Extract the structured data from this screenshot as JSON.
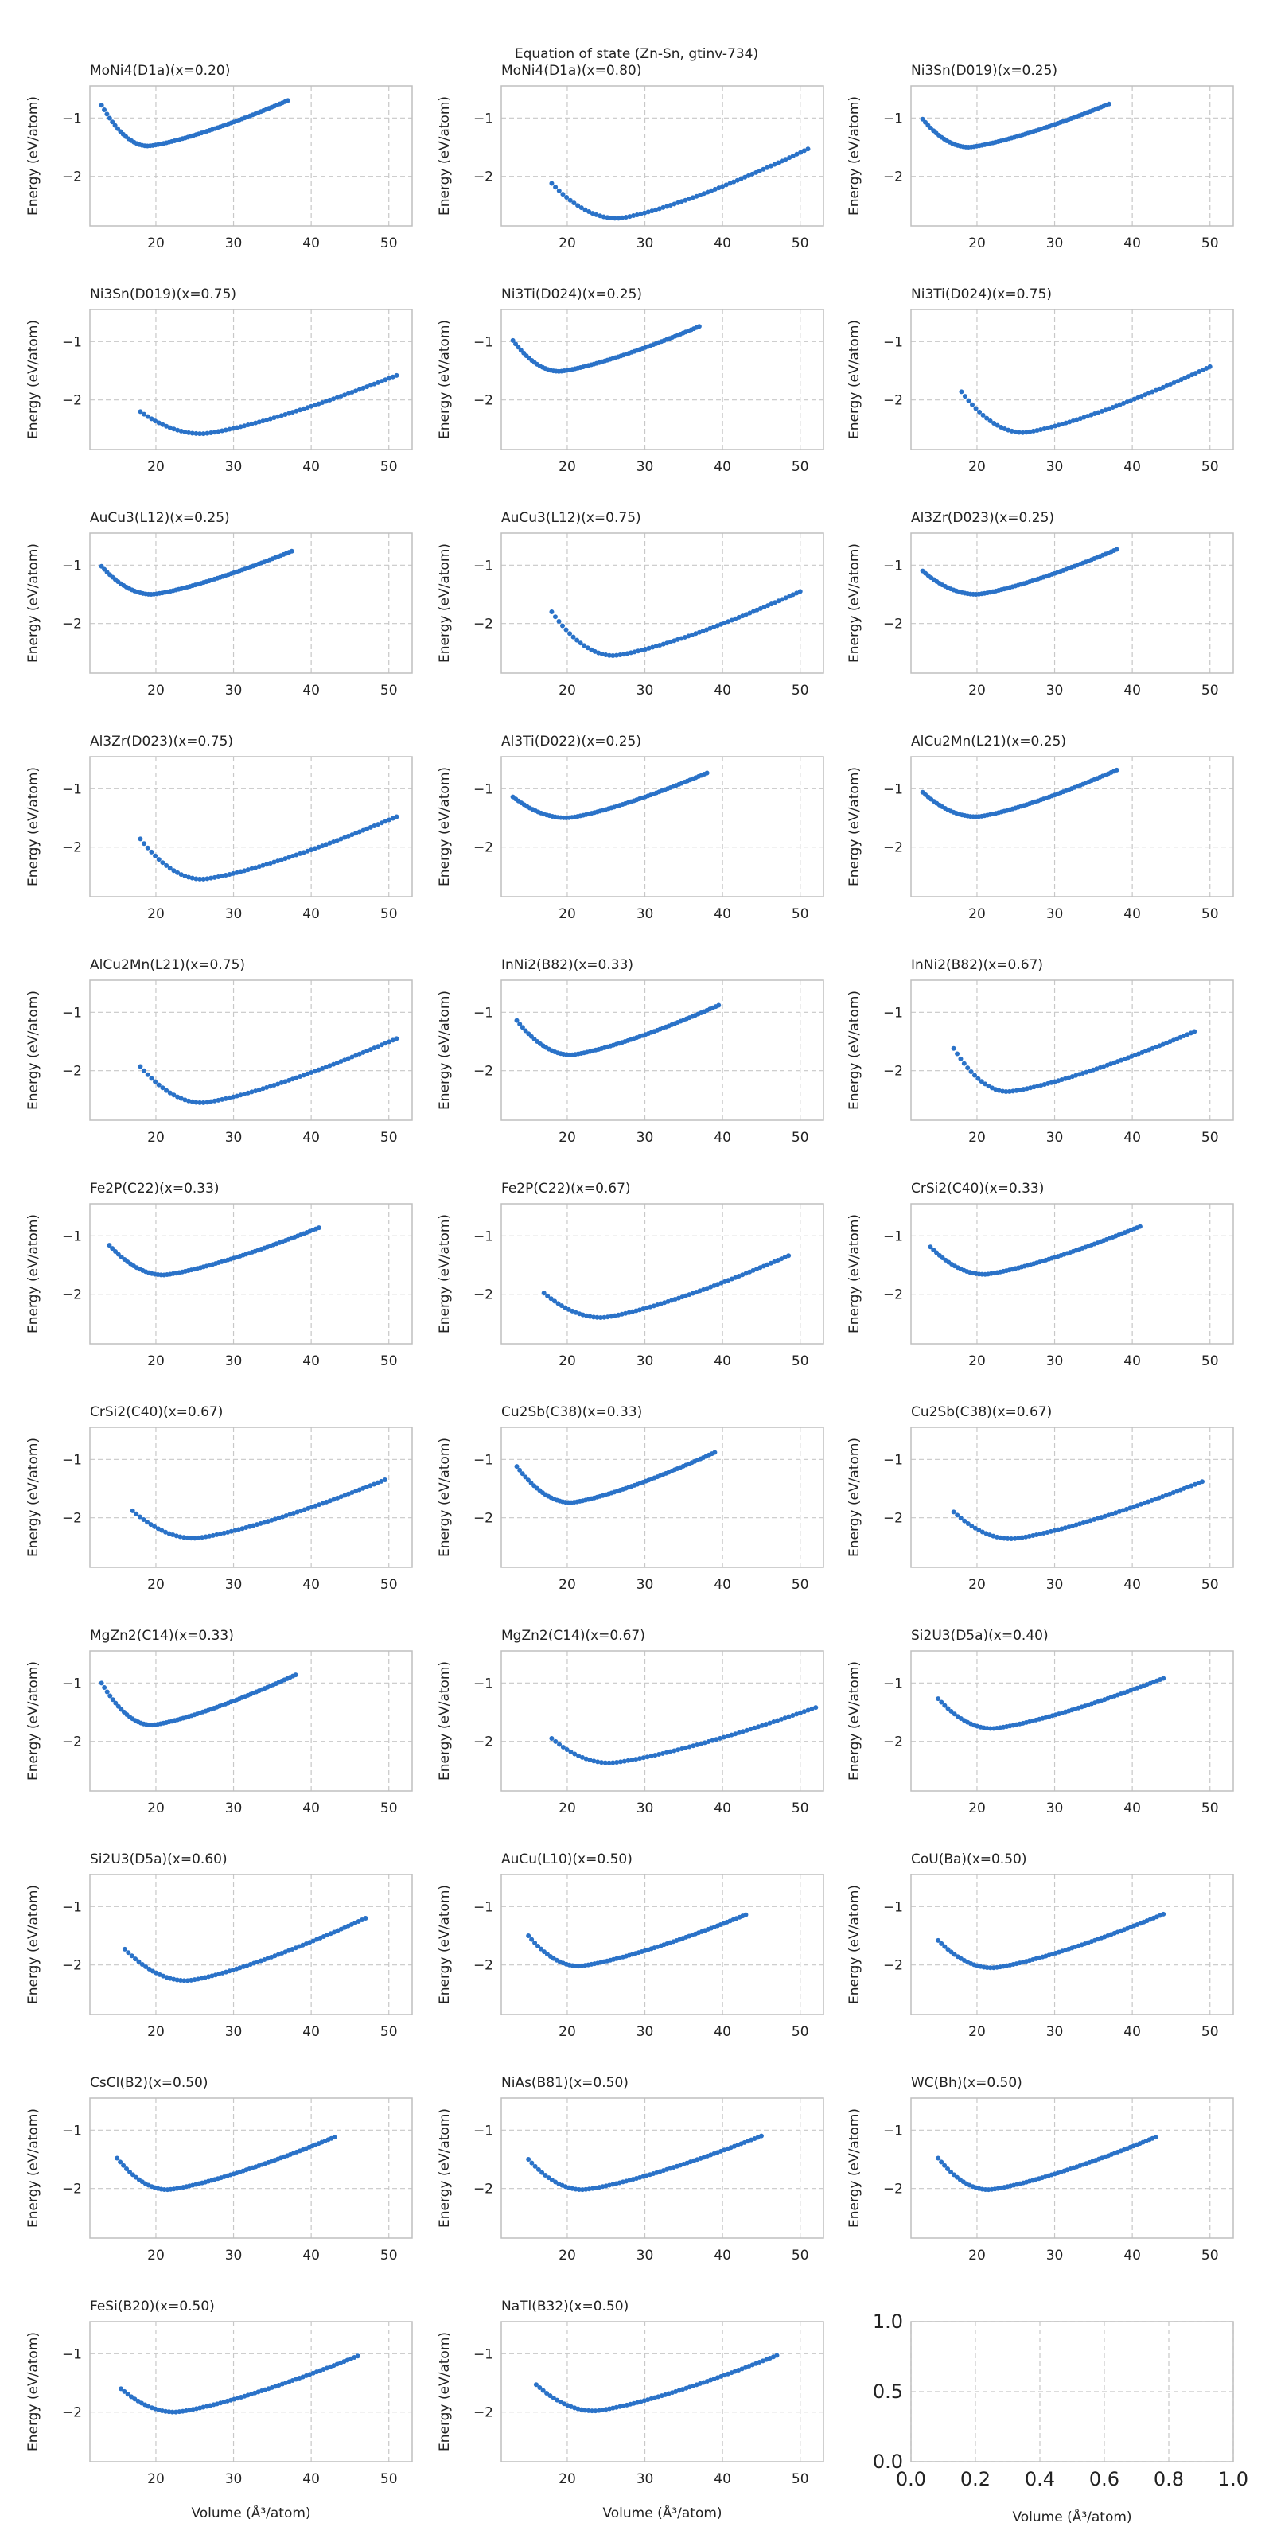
{
  "title": "Equation of state (Zn-Sn, gtinv-734)",
  "ylabel": "Energy (eV/atom)",
  "xlabel": "Volume (Å³/atom)",
  "series_color": "#2a72c8",
  "chart_data": [
    {
      "type": "scatter",
      "title": "MoNi4(D1a)(x=0.20)",
      "x_range": [
        13,
        37
      ],
      "v0": 19.0,
      "e0": -1.48,
      "e_first": -0.78,
      "e_last": -0.7,
      "xlim": [
        11.5,
        53
      ],
      "ylim": [
        -2.85,
        -0.45
      ]
    },
    {
      "type": "scatter",
      "title": "MoNi4(D1a)(x=0.80)",
      "x_range": [
        18,
        51
      ],
      "v0": 26.5,
      "e0": -2.72,
      "e_first": -2.12,
      "e_last": -1.53,
      "xlim": [
        11.5,
        53
      ],
      "ylim": [
        -2.85,
        -0.45
      ]
    },
    {
      "type": "scatter",
      "title": "Ni3Sn(D019)(x=0.25)",
      "x_range": [
        13,
        37
      ],
      "v0": 19.0,
      "e0": -1.5,
      "e_first": -1.02,
      "e_last": -0.76,
      "xlim": [
        11.5,
        53
      ],
      "ylim": [
        -2.85,
        -0.45
      ]
    },
    {
      "type": "scatter",
      "title": "Ni3Sn(D019)(x=0.75)",
      "x_range": [
        18,
        51
      ],
      "v0": 26.0,
      "e0": -2.58,
      "e_first": -2.2,
      "e_last": -1.58,
      "xlim": [
        11.5,
        53
      ],
      "ylim": [
        -2.85,
        -0.45
      ]
    },
    {
      "type": "scatter",
      "title": "Ni3Ti(D024)(x=0.25)",
      "x_range": [
        13,
        37
      ],
      "v0": 19.0,
      "e0": -1.51,
      "e_first": -0.98,
      "e_last": -0.74,
      "xlim": [
        11.5,
        53
      ],
      "ylim": [
        -2.85,
        -0.45
      ]
    },
    {
      "type": "scatter",
      "title": "Ni3Ti(D024)(x=0.75)",
      "x_range": [
        18,
        50
      ],
      "v0": 26.0,
      "e0": -2.56,
      "e_first": -1.86,
      "e_last": -1.43,
      "xlim": [
        11.5,
        53
      ],
      "ylim": [
        -2.85,
        -0.45
      ]
    },
    {
      "type": "scatter",
      "title": "AuCu3(L12)(x=0.25)",
      "x_range": [
        13,
        37.5
      ],
      "v0": 19.5,
      "e0": -1.5,
      "e_first": -1.02,
      "e_last": -0.76,
      "xlim": [
        11.5,
        53
      ],
      "ylim": [
        -2.85,
        -0.45
      ]
    },
    {
      "type": "scatter",
      "title": "AuCu3(L12)(x=0.75)",
      "x_range": [
        18,
        50
      ],
      "v0": 26.0,
      "e0": -2.55,
      "e_first": -1.8,
      "e_last": -1.45,
      "xlim": [
        11.5,
        53
      ],
      "ylim": [
        -2.85,
        -0.45
      ]
    },
    {
      "type": "scatter",
      "title": "Al3Zr(D023)(x=0.25)",
      "x_range": [
        13,
        38
      ],
      "v0": 20.0,
      "e0": -1.5,
      "e_first": -1.1,
      "e_last": -0.73,
      "xlim": [
        11.5,
        53
      ],
      "ylim": [
        -2.85,
        -0.45
      ]
    },
    {
      "type": "scatter",
      "title": "Al3Zr(D023)(x=0.75)",
      "x_range": [
        18,
        51
      ],
      "v0": 26.0,
      "e0": -2.55,
      "e_first": -1.86,
      "e_last": -1.48,
      "xlim": [
        11.5,
        53
      ],
      "ylim": [
        -2.85,
        -0.45
      ]
    },
    {
      "type": "scatter",
      "title": "Al3Ti(D022)(x=0.25)",
      "x_range": [
        13,
        38
      ],
      "v0": 20.0,
      "e0": -1.5,
      "e_first": -1.14,
      "e_last": -0.73,
      "xlim": [
        11.5,
        53
      ],
      "ylim": [
        -2.85,
        -0.45
      ]
    },
    {
      "type": "scatter",
      "title": "AlCu2Mn(L21)(x=0.25)",
      "x_range": [
        13,
        38
      ],
      "v0": 20.0,
      "e0": -1.48,
      "e_first": -1.06,
      "e_last": -0.68,
      "xlim": [
        11.5,
        53
      ],
      "ylim": [
        -2.85,
        -0.45
      ]
    },
    {
      "type": "scatter",
      "title": "AlCu2Mn(L21)(x=0.75)",
      "x_range": [
        18,
        51
      ],
      "v0": 26.0,
      "e0": -2.55,
      "e_first": -1.93,
      "e_last": -1.45,
      "xlim": [
        11.5,
        53
      ],
      "ylim": [
        -2.85,
        -0.45
      ]
    },
    {
      "type": "scatter",
      "title": "InNi2(B82)(x=0.33)",
      "x_range": [
        13.5,
        39.5
      ],
      "v0": 20.5,
      "e0": -1.73,
      "e_first": -1.14,
      "e_last": -0.88,
      "xlim": [
        11.5,
        53
      ],
      "ylim": [
        -2.85,
        -0.45
      ]
    },
    {
      "type": "scatter",
      "title": "InNi2(B82)(x=0.67)",
      "x_range": [
        17,
        48
      ],
      "v0": 24.0,
      "e0": -2.36,
      "e_first": -1.62,
      "e_last": -1.33,
      "xlim": [
        11.5,
        53
      ],
      "ylim": [
        -2.85,
        -0.45
      ]
    },
    {
      "type": "scatter",
      "title": "Fe2P(C22)(x=0.33)",
      "x_range": [
        14,
        41
      ],
      "v0": 21.0,
      "e0": -1.67,
      "e_first": -1.16,
      "e_last": -0.86,
      "xlim": [
        11.5,
        53
      ],
      "ylim": [
        -2.85,
        -0.45
      ]
    },
    {
      "type": "scatter",
      "title": "Fe2P(C22)(x=0.67)",
      "x_range": [
        17,
        48.5
      ],
      "v0": 24.5,
      "e0": -2.4,
      "e_first": -1.98,
      "e_last": -1.34,
      "xlim": [
        11.5,
        53
      ],
      "ylim": [
        -2.85,
        -0.45
      ]
    },
    {
      "type": "scatter",
      "title": "CrSi2(C40)(x=0.33)",
      "x_range": [
        14,
        41
      ],
      "v0": 21.0,
      "e0": -1.66,
      "e_first": -1.19,
      "e_last": -0.84,
      "xlim": [
        11.5,
        53
      ],
      "ylim": [
        -2.85,
        -0.45
      ]
    },
    {
      "type": "scatter",
      "title": "CrSi2(C40)(x=0.67)",
      "x_range": [
        17,
        49.5
      ],
      "v0": 25.0,
      "e0": -2.35,
      "e_first": -1.88,
      "e_last": -1.35,
      "xlim": [
        11.5,
        53
      ],
      "ylim": [
        -2.85,
        -0.45
      ]
    },
    {
      "type": "scatter",
      "title": "Cu2Sb(C38)(x=0.33)",
      "x_range": [
        13.5,
        39
      ],
      "v0": 20.5,
      "e0": -1.74,
      "e_first": -1.12,
      "e_last": -0.88,
      "xlim": [
        11.5,
        53
      ],
      "ylim": [
        -2.85,
        -0.45
      ]
    },
    {
      "type": "scatter",
      "title": "Cu2Sb(C38)(x=0.67)",
      "x_range": [
        17,
        49
      ],
      "v0": 24.5,
      "e0": -2.36,
      "e_first": -1.9,
      "e_last": -1.38,
      "xlim": [
        11.5,
        53
      ],
      "ylim": [
        -2.85,
        -0.45
      ]
    },
    {
      "type": "scatter",
      "title": "MgZn2(C14)(x=0.33)",
      "x_range": [
        13,
        38
      ],
      "v0": 19.5,
      "e0": -1.72,
      "e_first": -1.0,
      "e_last": -0.86,
      "xlim": [
        11.5,
        53
      ],
      "ylim": [
        -2.85,
        -0.45
      ]
    },
    {
      "type": "scatter",
      "title": "MgZn2(C14)(x=0.67)",
      "x_range": [
        18,
        52
      ],
      "v0": 25.5,
      "e0": -2.37,
      "e_first": -1.95,
      "e_last": -1.42,
      "xlim": [
        11.5,
        53
      ],
      "ylim": [
        -2.85,
        -0.45
      ]
    },
    {
      "type": "scatter",
      "title": "Si2U3(D5a)(x=0.40)",
      "x_range": [
        15,
        44
      ],
      "v0": 22.0,
      "e0": -1.78,
      "e_first": -1.27,
      "e_last": -0.92,
      "xlim": [
        11.5,
        53
      ],
      "ylim": [
        -2.85,
        -0.45
      ]
    },
    {
      "type": "scatter",
      "title": "Si2U3(D5a)(x=0.60)",
      "x_range": [
        16,
        47
      ],
      "v0": 24.0,
      "e0": -2.27,
      "e_first": -1.73,
      "e_last": -1.2,
      "xlim": [
        11.5,
        53
      ],
      "ylim": [
        -2.85,
        -0.45
      ]
    },
    {
      "type": "scatter",
      "title": "AuCu(L10)(x=0.50)",
      "x_range": [
        15,
        43
      ],
      "v0": 21.5,
      "e0": -2.02,
      "e_first": -1.5,
      "e_last": -1.14,
      "xlim": [
        11.5,
        53
      ],
      "ylim": [
        -2.85,
        -0.45
      ]
    },
    {
      "type": "scatter",
      "title": "CoU(Ba)(x=0.50)",
      "x_range": [
        15,
        44
      ],
      "v0": 22.0,
      "e0": -2.05,
      "e_first": -1.58,
      "e_last": -1.13,
      "xlim": [
        11.5,
        53
      ],
      "ylim": [
        -2.85,
        -0.45
      ]
    },
    {
      "type": "scatter",
      "title": "CsCl(B2)(x=0.50)",
      "x_range": [
        15,
        43
      ],
      "v0": 21.5,
      "e0": -2.02,
      "e_first": -1.48,
      "e_last": -1.12,
      "xlim": [
        11.5,
        53
      ],
      "ylim": [
        -2.85,
        -0.45
      ]
    },
    {
      "type": "scatter",
      "title": "NiAs(B81)(x=0.50)",
      "x_range": [
        15,
        45
      ],
      "v0": 22.0,
      "e0": -2.02,
      "e_first": -1.5,
      "e_last": -1.1,
      "xlim": [
        11.5,
        53
      ],
      "ylim": [
        -2.85,
        -0.45
      ]
    },
    {
      "type": "scatter",
      "title": "WC(Bh)(x=0.50)",
      "x_range": [
        15,
        43
      ],
      "v0": 21.5,
      "e0": -2.02,
      "e_first": -1.48,
      "e_last": -1.12,
      "xlim": [
        11.5,
        53
      ],
      "ylim": [
        -2.85,
        -0.45
      ]
    },
    {
      "type": "scatter",
      "title": "FeSi(B20)(x=0.50)",
      "x_range": [
        15.5,
        46
      ],
      "v0": 22.5,
      "e0": -2.0,
      "e_first": -1.6,
      "e_last": -1.04,
      "xlim": [
        11.5,
        53
      ],
      "ylim": [
        -2.85,
        -0.45
      ]
    },
    {
      "type": "scatter",
      "title": "NaTl(B32)(x=0.50)",
      "x_range": [
        16,
        47
      ],
      "v0": 23.5,
      "e0": -1.98,
      "e_first": -1.53,
      "e_last": -1.03,
      "xlim": [
        11.5,
        53
      ],
      "ylim": [
        -2.85,
        -0.45
      ]
    },
    {
      "type": "empty",
      "xlim": [
        0,
        1
      ],
      "ylim": [
        0,
        1
      ]
    }
  ]
}
